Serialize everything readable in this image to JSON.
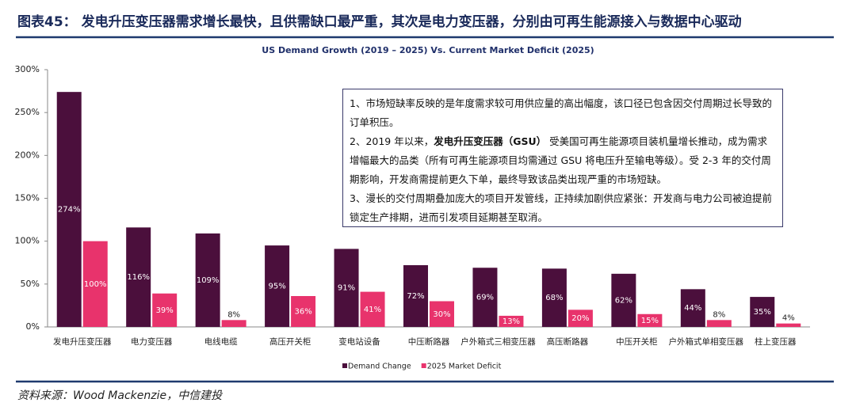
{
  "page_title": "图表45：  发电升压变压器需求增长最快，且供需缺口最严重，其次是电力变压器，分别由可再生能源接入与数据中心驱动",
  "source": "资料来源：Wood Mackenzie，中信建投",
  "chart_data": {
    "type": "bar",
    "title": "US Demand Growth (2019 – 2025) Vs. Current Market Deficit (2025)",
    "categories": [
      "发电升压变压器",
      "电力变压器",
      "电线电缆",
      "高压开关柜",
      "变电站设备",
      "中压断路器",
      "户外箱式三相变压器",
      "高压断路器",
      "中压开关柜",
      "户外箱式单相变压器",
      "柱上变压器"
    ],
    "series": [
      {
        "name": "Demand Change",
        "color": "#4b0f3c",
        "values": [
          274,
          116,
          109,
          95,
          91,
          72,
          69,
          68,
          62,
          44,
          35
        ],
        "value_labels": [
          "274%",
          "116%",
          "109%",
          "95%",
          "91%",
          "72%",
          "69%",
          "68%",
          "62%",
          "44%",
          "35%"
        ]
      },
      {
        "name": "2025 Market Deficit",
        "color": "#e8336c",
        "values": [
          100,
          39,
          8,
          36,
          41,
          30,
          13,
          20,
          15,
          8,
          4
        ],
        "value_labels": [
          "100%",
          "39%",
          "8%",
          "36%",
          "41%",
          "30%",
          "13%",
          "20%",
          "15%",
          "8%",
          "4%"
        ]
      }
    ],
    "ylim": [
      0,
      300
    ],
    "yticks": [
      {
        "value": 0,
        "label": "0%"
      },
      {
        "value": 50,
        "label": "50%"
      },
      {
        "value": 100,
        "label": "100%"
      },
      {
        "value": 150,
        "label": "150%"
      },
      {
        "value": 200,
        "label": "200%"
      },
      {
        "value": 250,
        "label": "250%"
      },
      {
        "value": 300,
        "label": "300%"
      }
    ],
    "grid": false,
    "legend": "bottom",
    "annotation": [
      [
        {
          "text": "1、市场短缺率反映的是年度需求较可用供应量的高出幅度，该口径已包含因交付周期过长导致的订单积压。"
        }
      ],
      [
        {
          "text": "2、2019 年以来，"
        },
        {
          "text": "发电升压变压器（GSU）",
          "bold": true
        },
        {
          "text": " 受美国可再生能源项目装机量增长推动，成为需求增幅最大的品类（所有可再生能源项目均需通过 GSU 将电压升至输电等级）。受 2-3 年的交付周期影响，开发商需提前更久下单，最终导致该品类出现严重的市场短缺。"
        }
      ],
      [
        {
          "text": "3、漫长的交付周期叠加庞大的项目开发管线，正持续加剧供应紧张：开发商与电力公司被迫提前锁定生产排期，进而引发项目延期甚至取消。"
        }
      ]
    ]
  }
}
